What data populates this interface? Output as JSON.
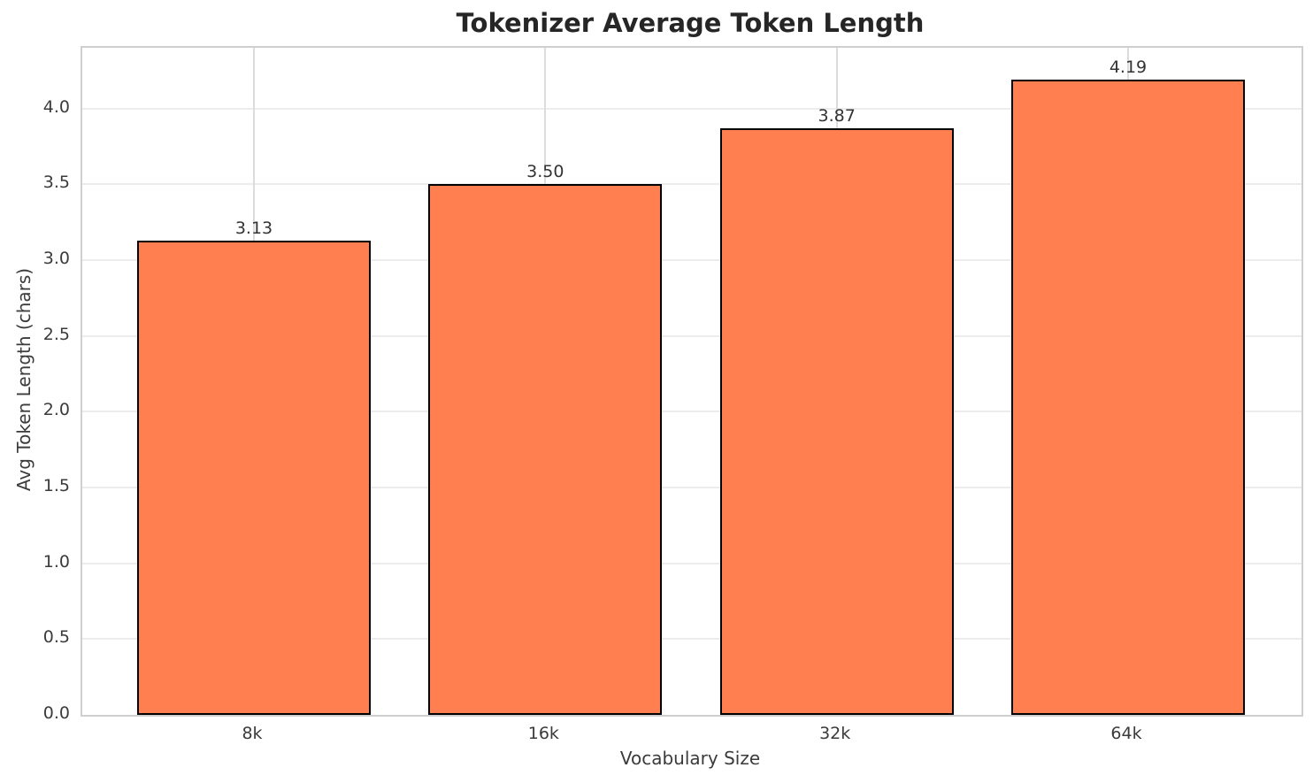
{
  "chart_data": {
    "type": "bar",
    "title": "Tokenizer Average Token Length",
    "xlabel": "Vocabulary Size",
    "ylabel": "Avg Token Length (chars)",
    "categories": [
      "8k",
      "16k",
      "32k",
      "64k"
    ],
    "values": [
      3.13,
      3.5,
      3.87,
      4.19
    ],
    "value_labels": [
      "3.13",
      "3.50",
      "3.87",
      "4.19"
    ],
    "ylim": [
      0,
      4.4
    ],
    "yticks": [
      0.0,
      0.5,
      1.0,
      1.5,
      2.0,
      2.5,
      3.0,
      3.5,
      4.0
    ],
    "ytick_labels": [
      "0.0",
      "0.5",
      "1.0",
      "1.5",
      "2.0",
      "2.5",
      "3.0",
      "3.5",
      "4.0"
    ],
    "grid": true,
    "legend_position": "none",
    "colors": {
      "bar_fill": "#FF7F50",
      "bar_edge": "#000000",
      "grid_horizontal": "#ECECEC",
      "grid_vertical": "#DCDCDC",
      "spine": "#CFCFCF",
      "title_text": "#262626",
      "tick_text": "#3B3B3B",
      "axis_label_text": "#3B3B3B",
      "value_label_text": "#333333",
      "background": "#FFFFFF"
    }
  }
}
